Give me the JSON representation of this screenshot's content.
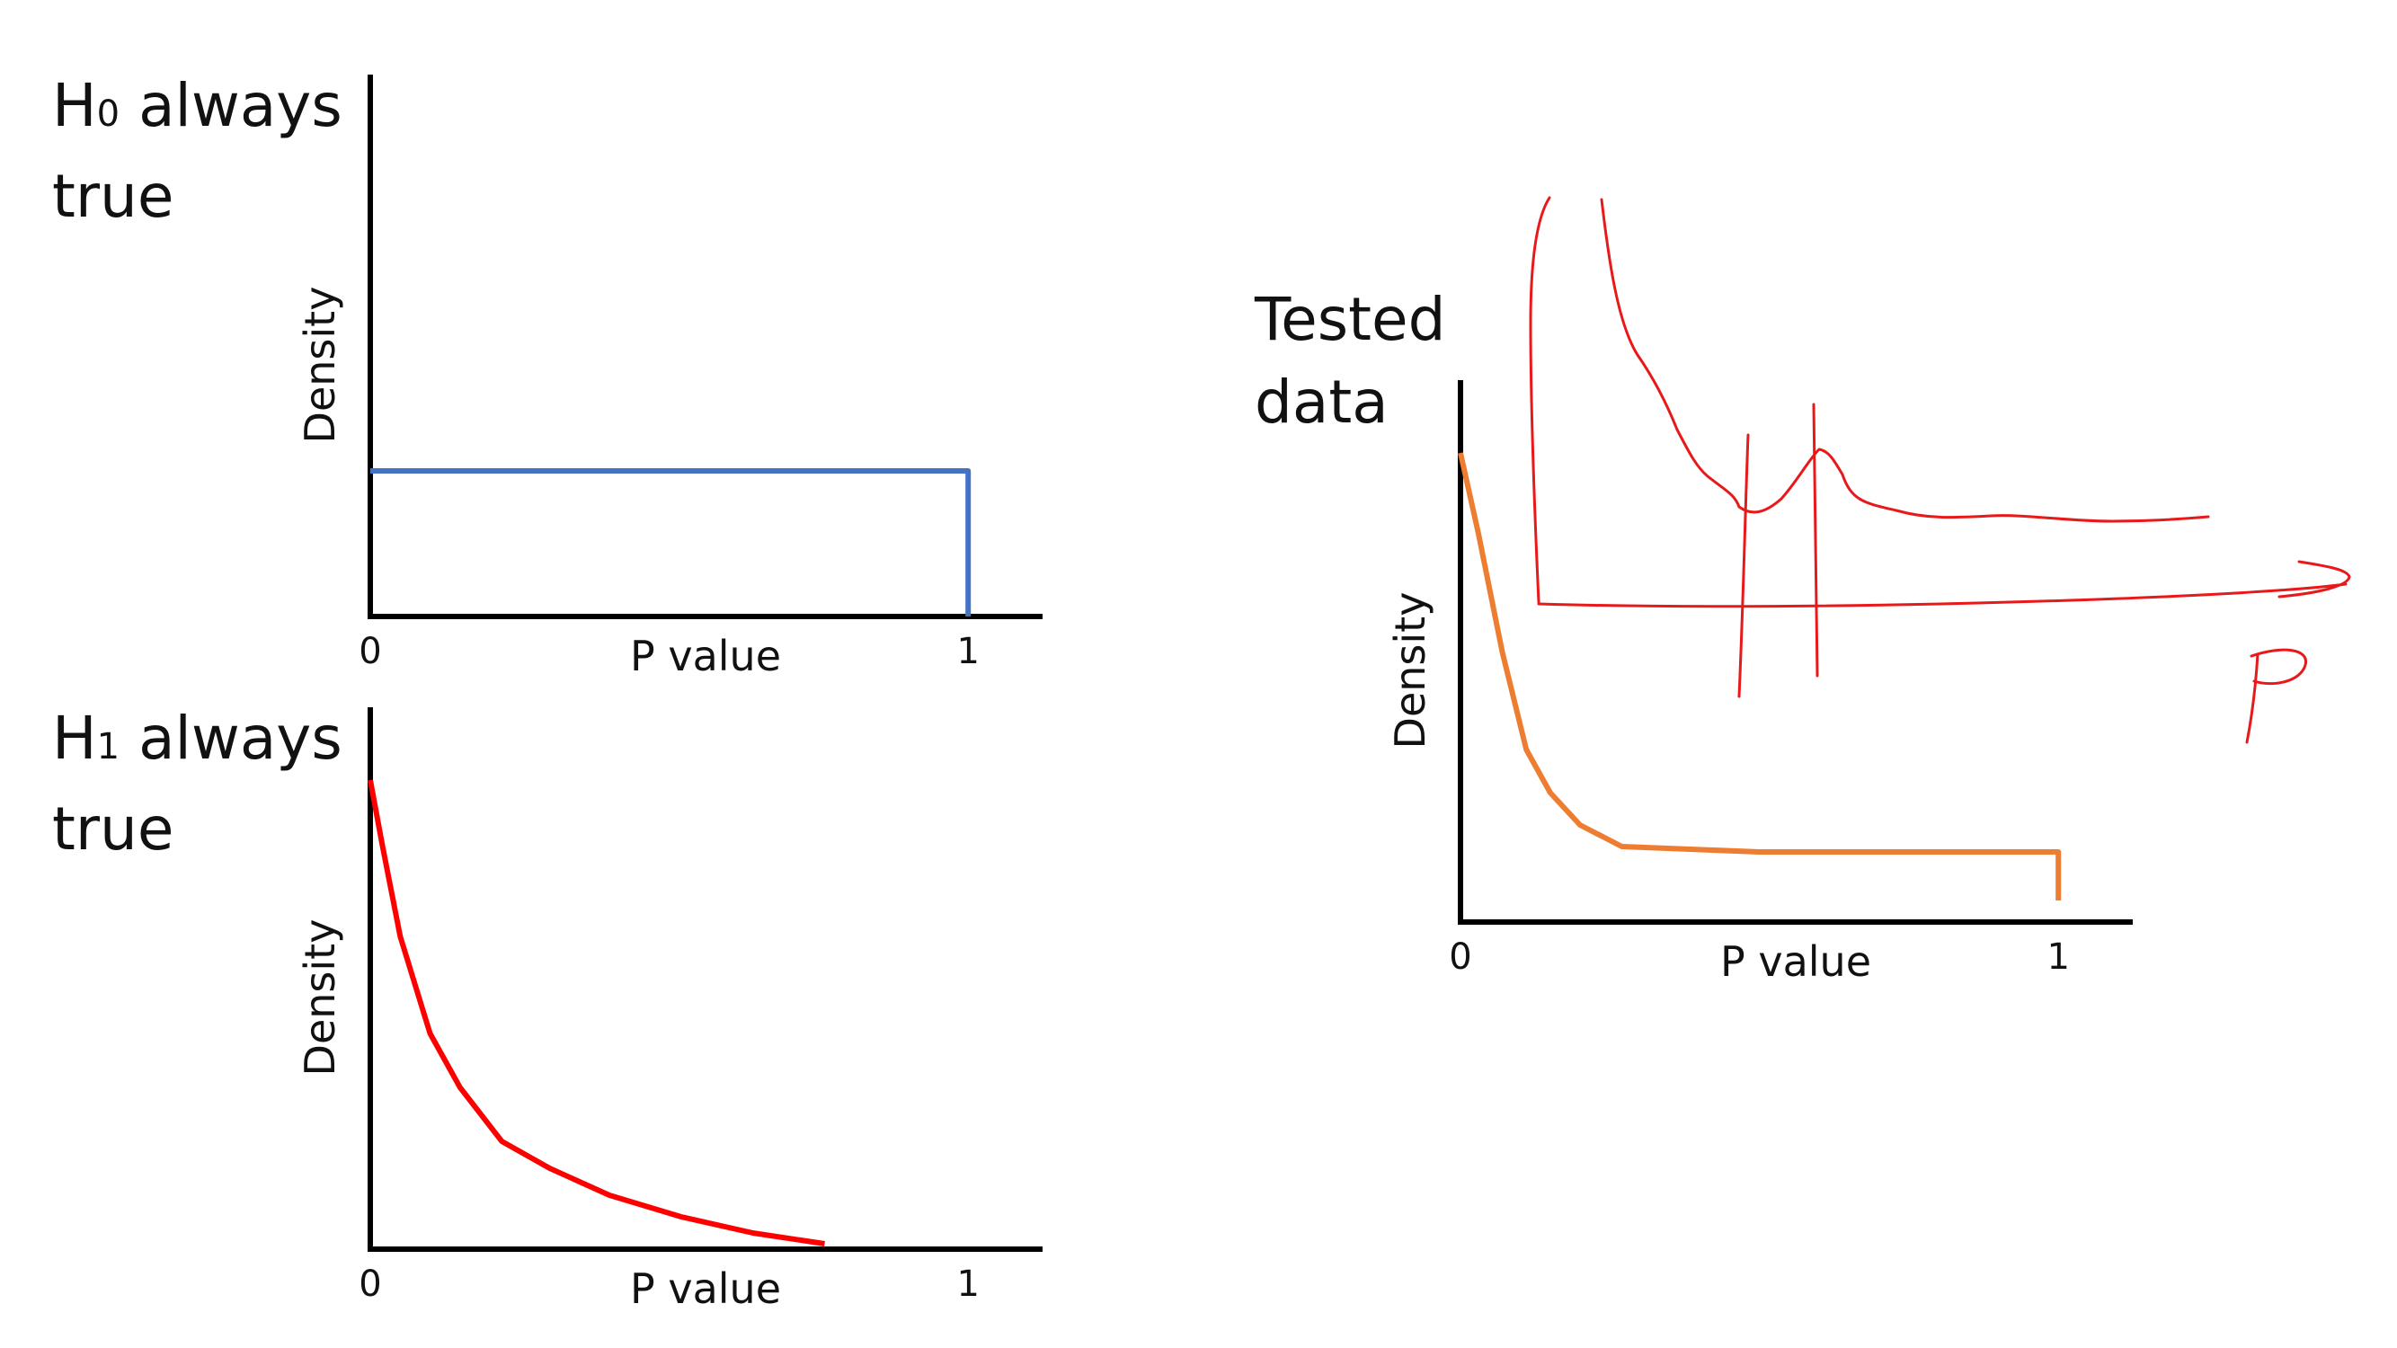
{
  "panels": {
    "h0": {
      "title_main": "H",
      "title_sub": "0",
      "title_rest": "always",
      "title_line2": "true"
    },
    "h1": {
      "title_main": "H",
      "title_sub": "1",
      "title_rest": "always",
      "title_line2": "true"
    },
    "tested": {
      "title_line1": "Tested",
      "title_line2": "data"
    }
  },
  "chart_data": [
    {
      "type": "line",
      "name": "h0",
      "xlabel": "P value",
      "ylabel": "Density",
      "x_ticks": [
        "0",
        "1"
      ],
      "xlim": [
        0,
        1.12
      ],
      "ylim": [
        0,
        1
      ],
      "color": "#4472C4",
      "series": [
        {
          "x": [
            0,
            1,
            1
          ],
          "y": [
            0.27,
            0.27,
            0
          ]
        }
      ]
    },
    {
      "type": "line",
      "name": "h1",
      "xlabel": "P value",
      "ylabel": "Density",
      "x_ticks": [
        "0",
        "1"
      ],
      "xlim": [
        0,
        1.12
      ],
      "ylim": [
        0,
        1
      ],
      "color": "#FF0000",
      "series": [
        {
          "x": [
            0,
            0.02,
            0.05,
            0.1,
            0.15,
            0.22,
            0.3,
            0.4,
            0.52,
            0.64,
            0.76
          ],
          "y": [
            0.87,
            0.75,
            0.58,
            0.4,
            0.3,
            0.2,
            0.15,
            0.1,
            0.06,
            0.03,
            0.01
          ]
        }
      ]
    },
    {
      "type": "line",
      "name": "tested",
      "xlabel": "P value",
      "ylabel": "Density",
      "x_ticks": [
        "0",
        "1"
      ],
      "xlim": [
        0,
        1.12
      ],
      "ylim": [
        0,
        1
      ],
      "color": "#ED7D31",
      "series": [
        {
          "x": [
            0,
            0.03,
            0.07,
            0.11,
            0.15,
            0.2,
            0.27,
            0.5,
            1,
            1
          ],
          "y": [
            0.87,
            0.72,
            0.5,
            0.32,
            0.24,
            0.18,
            0.14,
            0.13,
            0.13,
            0.04
          ]
        }
      ]
    }
  ],
  "annotation": {
    "color": "#E8191A",
    "label": "P"
  }
}
